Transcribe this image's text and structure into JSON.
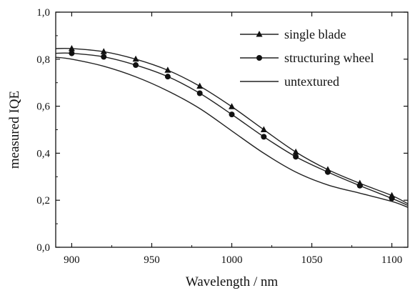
{
  "chart_data": {
    "type": "line",
    "title": "",
    "xlabel": "Wavelength / nm",
    "ylabel": "measured IQE",
    "xlim": [
      890,
      1110
    ],
    "ylim": [
      0.0,
      1.0
    ],
    "xticks": [
      900,
      950,
      1000,
      1050,
      1100
    ],
    "xtick_labels": [
      "900",
      "950",
      "1000",
      "1050",
      "1100"
    ],
    "yticks": [
      0.0,
      0.2,
      0.4,
      0.6,
      0.8,
      1.0
    ],
    "ytick_labels": [
      "0,0",
      "0,2",
      "0,4",
      "0,6",
      "0,8",
      "1,0"
    ],
    "grid": false,
    "legend_position": "top-right",
    "series": [
      {
        "name": "single blade",
        "marker": "triangle",
        "x": [
          890,
          900,
          920,
          940,
          960,
          980,
          1000,
          1020,
          1040,
          1060,
          1080,
          1100,
          1110
        ],
        "y": [
          0.845,
          0.845,
          0.832,
          0.8,
          0.753,
          0.685,
          0.598,
          0.5,
          0.405,
          0.33,
          0.272,
          0.22,
          0.185
        ],
        "marker_x": [
          900,
          920,
          940,
          960,
          980,
          1000,
          1020,
          1040,
          1060,
          1080,
          1100
        ],
        "marker_y": [
          0.845,
          0.832,
          0.8,
          0.753,
          0.685,
          0.598,
          0.5,
          0.405,
          0.33,
          0.272,
          0.22
        ]
      },
      {
        "name": "structuring wheel",
        "marker": "circle",
        "x": [
          890,
          900,
          920,
          940,
          960,
          980,
          1000,
          1020,
          1040,
          1060,
          1080,
          1100,
          1110
        ],
        "y": [
          0.825,
          0.825,
          0.81,
          0.775,
          0.726,
          0.655,
          0.565,
          0.47,
          0.385,
          0.32,
          0.262,
          0.208,
          0.178
        ],
        "marker_x": [
          900,
          920,
          940,
          960,
          980,
          1000,
          1020,
          1040,
          1060,
          1080,
          1100
        ],
        "marker_y": [
          0.825,
          0.81,
          0.775,
          0.726,
          0.655,
          0.565,
          0.47,
          0.385,
          0.32,
          0.262,
          0.208
        ]
      },
      {
        "name": "untextured",
        "marker": "none",
        "x": [
          890,
          900,
          920,
          940,
          960,
          980,
          1000,
          1020,
          1040,
          1060,
          1080,
          1100,
          1110
        ],
        "y": [
          0.808,
          0.8,
          0.77,
          0.725,
          0.665,
          0.59,
          0.495,
          0.4,
          0.32,
          0.265,
          0.23,
          0.195,
          0.17
        ]
      }
    ]
  }
}
